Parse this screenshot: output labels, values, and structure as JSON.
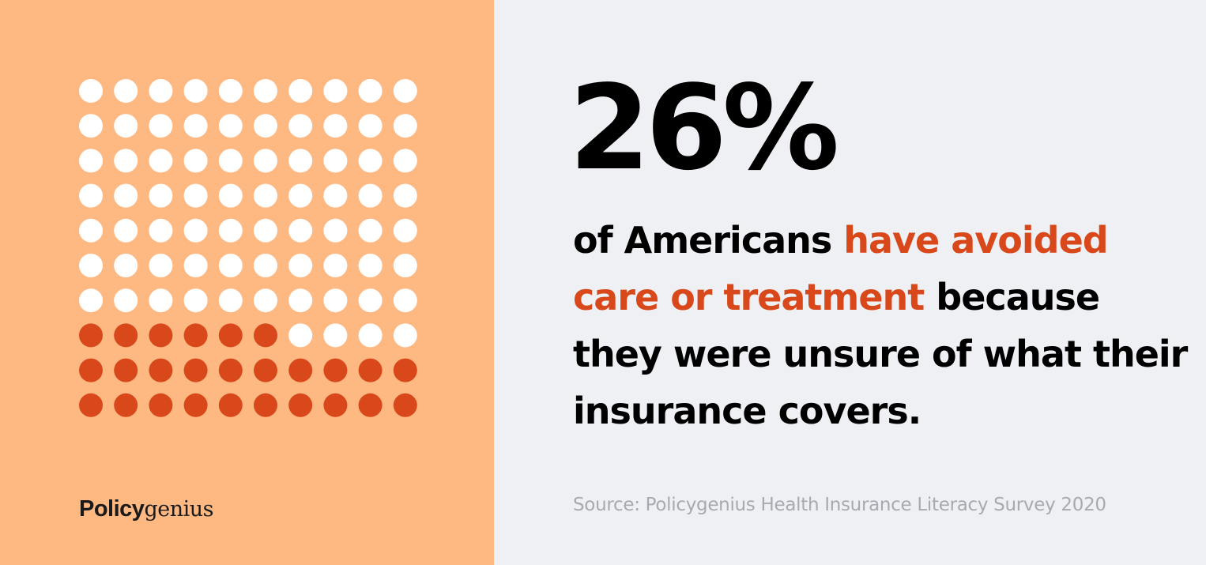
{
  "colors": {
    "left_background": "#FEB882",
    "right_background": "#EEF0F4",
    "highlight": "#D9481A",
    "dot_empty": "#FFFFFF",
    "text_dark": "#000000",
    "source_text": "#A9A9B1"
  },
  "chart_data": {
    "type": "waffle",
    "total": 100,
    "highlighted": 26,
    "rows": 10,
    "columns": 10,
    "fill_from": "bottom-left"
  },
  "stat": {
    "value": "26%"
  },
  "statement": {
    "part1": "of Americans ",
    "highlight": "have avoided care or treatment",
    "part2": " because they were unsure of what their insurance covers."
  },
  "logo": {
    "bold": "Policy",
    "light": "genius"
  },
  "source": "Source: Policygenius Health Insurance Literacy Survey 2020"
}
